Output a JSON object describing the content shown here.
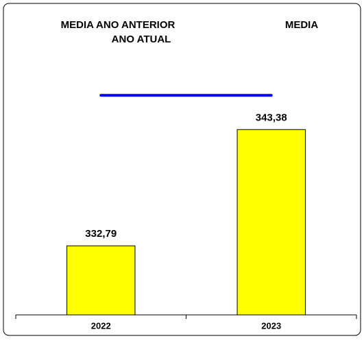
{
  "chart_data": {
    "type": "bar",
    "categories": [
      "2022",
      "2023"
    ],
    "series": [
      {
        "name": "MEDIA ANO ANTERIOR",
        "type": "line",
        "color": "#0000ff",
        "values": [
          null,
          null
        ]
      },
      {
        "name": "ANO ATUAL",
        "type": "bar",
        "color": "#ffff00",
        "values": [
          332.79,
          343.38
        ],
        "value_labels": [
          "332,79",
          "343,38"
        ]
      },
      {
        "name": "MEDIA",
        "type": "line",
        "color": "#0000ff",
        "values": [
          346.5,
          346.5
        ]
      }
    ],
    "ylim": [
      326.5,
      353
    ]
  }
}
